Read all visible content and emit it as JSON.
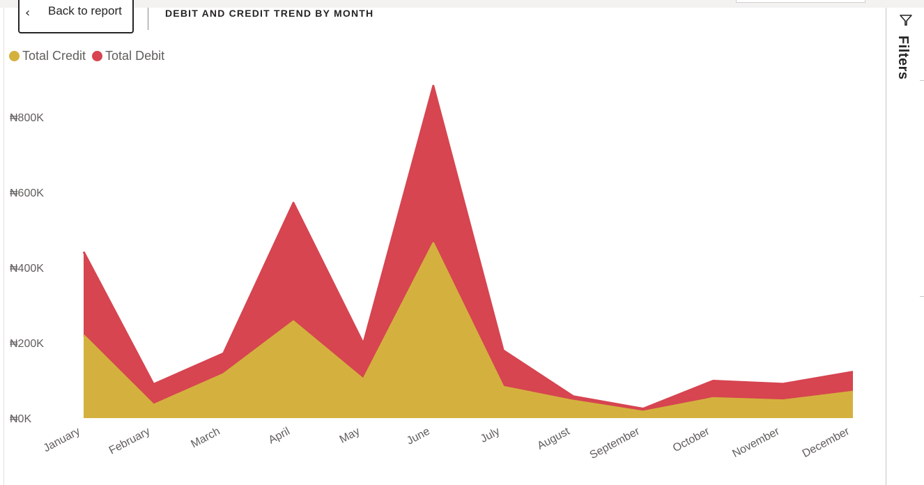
{
  "header": {
    "back_label": "Back to report",
    "title": "DEBIT AND CREDIT TREND BY MONTH"
  },
  "filters": {
    "label": "Filters"
  },
  "legend": [
    {
      "label": "Total Credit",
      "color": "#D4B13E"
    },
    {
      "label": "Total Debit",
      "color": "#D64550"
    }
  ],
  "chart_data": {
    "type": "area",
    "stacked": true,
    "title": "DEBIT AND CREDIT TREND BY MONTH",
    "categories": [
      "January",
      "February",
      "March",
      "April",
      "May",
      "June",
      "July",
      "August",
      "September",
      "October",
      "November",
      "December"
    ],
    "series": [
      {
        "name": "Total Credit",
        "color": "#D4B13E",
        "values": [
          220000,
          35000,
          117000,
          257000,
          103000,
          465000,
          83000,
          46000,
          17000,
          53000,
          47000,
          70000
        ]
      },
      {
        "name": "Total Debit",
        "color": "#D64550",
        "values": [
          222000,
          55000,
          55000,
          315000,
          95000,
          418000,
          97000,
          12000,
          8000,
          46000,
          44000,
          53000
        ]
      }
    ],
    "y_ticks": [
      "₦0K",
      "₦200K",
      "₦400K",
      "₦600K",
      "₦800K"
    ],
    "ylim": [
      0,
      900000
    ],
    "ylabel": "",
    "xlabel": "",
    "grid": false,
    "legend_position": "top-left"
  }
}
